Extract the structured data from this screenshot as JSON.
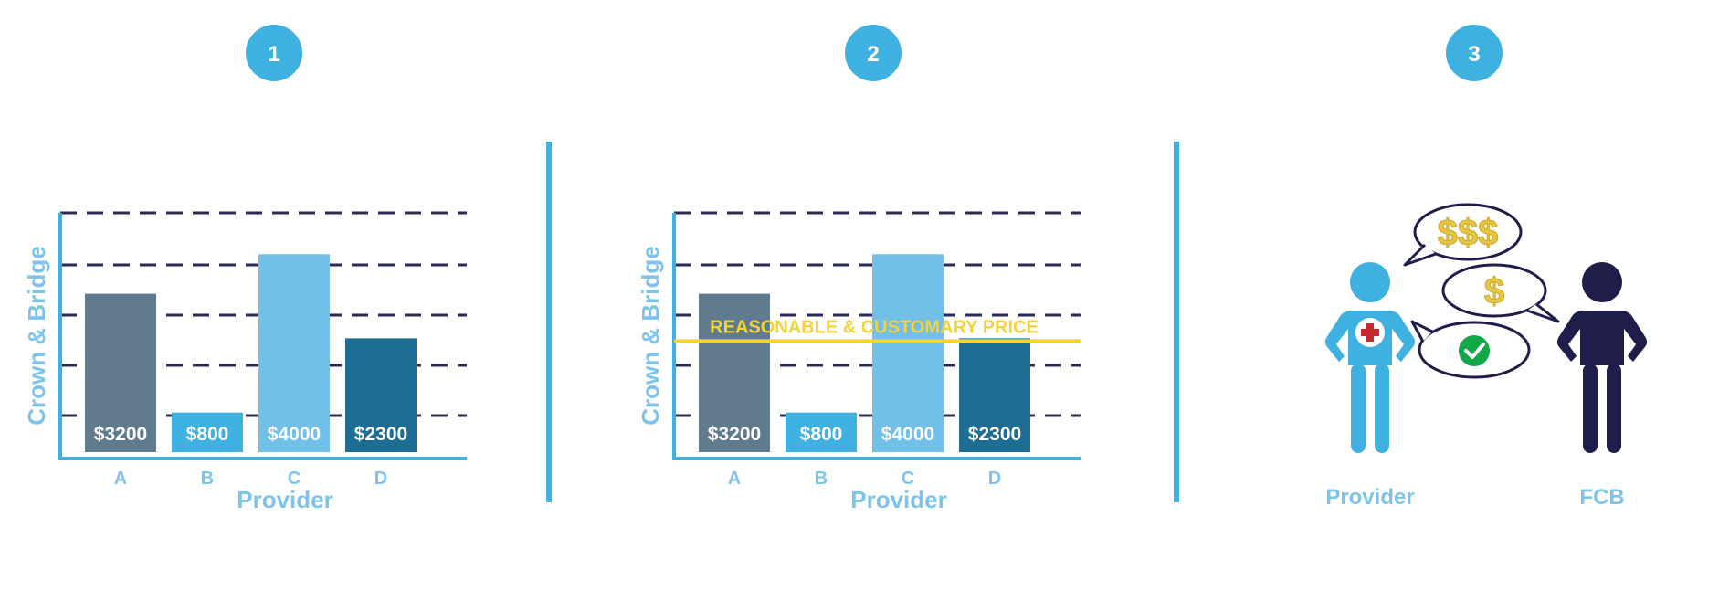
{
  "steps": [
    "1",
    "2",
    "3"
  ],
  "colors": {
    "accent": "#3fb1e0",
    "label": "#7ec4ea",
    "grid": "#2a2a52",
    "line": "#f3d23a",
    "dollar": "#e6c542",
    "fcb_figure": "#1f1e4b",
    "check": "#11a84a",
    "cross": "#c6282e"
  },
  "chart_data": [
    {
      "type": "bar",
      "ylabel": "Crown & Bridge",
      "xlabel": "Provider",
      "categories": [
        "A",
        "B",
        "C",
        "D"
      ],
      "values": [
        3200,
        800,
        4000,
        2300
      ],
      "value_labels": [
        "$3200",
        "$800",
        "$4000",
        "$2300"
      ],
      "bar_colors": [
        "#607b8e",
        "#3fb1e0",
        "#72bfe7",
        "#1d6e92"
      ],
      "ylim": [
        0,
        4300
      ],
      "grid": true
    },
    {
      "type": "bar",
      "ylabel": "Crown & Bridge",
      "xlabel": "Provider",
      "categories": [
        "A",
        "B",
        "C",
        "D"
      ],
      "values": [
        3200,
        800,
        4000,
        2300
      ],
      "value_labels": [
        "$3200",
        "$800",
        "$4000",
        "$2300"
      ],
      "bar_colors": [
        "#607b8e",
        "#3fb1e0",
        "#72bfe7",
        "#1d6e92"
      ],
      "ylim": [
        0,
        4300
      ],
      "grid": true,
      "reference_line": {
        "label": "REASONABLE & CUSTOMARY PRICE",
        "value": 2300
      }
    }
  ],
  "panel3": {
    "provider_label": "Provider",
    "fcb_label": "FCB",
    "bubble_top": "$$$",
    "bubble_mid": "$"
  }
}
